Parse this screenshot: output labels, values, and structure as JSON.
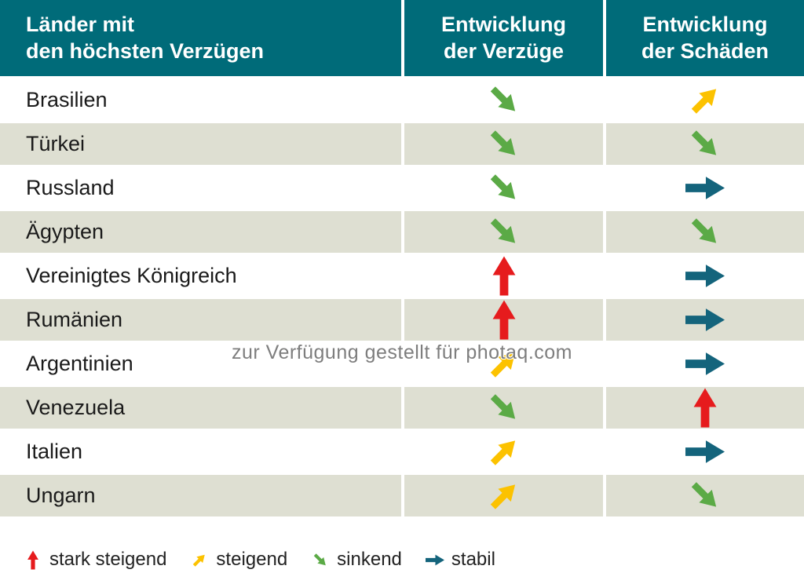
{
  "header": {
    "countries": "Länder mit\nden höchsten Verzügen",
    "verzuege": "Entwicklung\nder Verzüge",
    "schaeden": "Entwicklung\nder Schäden"
  },
  "watermark": "zur Verfügung gestellt für photaq.com",
  "legend": [
    {
      "label": "stark steigend",
      "trend": "stark steigend"
    },
    {
      "label": "steigend",
      "trend": "steigend"
    },
    {
      "label": "sinkend",
      "trend": "sinkend"
    },
    {
      "label": "stabil",
      "trend": "stabil"
    }
  ],
  "colors": {
    "header_bg": "#006b79",
    "row_alt_bg": "#dedfd2",
    "arrow_stark_steigend": "#e61b1d",
    "arrow_steigend": "#fcc200",
    "arrow_sinkend": "#5baa46",
    "arrow_stabil": "#14647c"
  },
  "chart_data": {
    "type": "table",
    "title": "Länder mit den höchsten Verzügen",
    "columns": [
      "Länder mit den höchsten Verzügen",
      "Entwicklung der Verzüge",
      "Entwicklung der Schäden"
    ],
    "rows": [
      {
        "country": "Brasilien",
        "entwicklung_der_verzuege": "sinkend",
        "entwicklung_der_schaeden": "steigend"
      },
      {
        "country": "Türkei",
        "entwicklung_der_verzuege": "sinkend",
        "entwicklung_der_schaeden": "sinkend"
      },
      {
        "country": "Russland",
        "entwicklung_der_verzuege": "sinkend",
        "entwicklung_der_schaeden": "stabil"
      },
      {
        "country": "Ägypten",
        "entwicklung_der_verzuege": "sinkend",
        "entwicklung_der_schaeden": "sinkend"
      },
      {
        "country": "Vereinigtes Königreich",
        "entwicklung_der_verzuege": "stark steigend",
        "entwicklung_der_schaeden": "stabil"
      },
      {
        "country": "Rumänien",
        "entwicklung_der_verzuege": "stark steigend",
        "entwicklung_der_schaeden": "stabil"
      },
      {
        "country": "Argentinien",
        "entwicklung_der_verzuege": "steigend",
        "entwicklung_der_schaeden": "stabil"
      },
      {
        "country": "Venezuela",
        "entwicklung_der_verzuege": "sinkend",
        "entwicklung_der_schaeden": "stark steigend"
      },
      {
        "country": "Italien",
        "entwicklung_der_verzuege": "steigend",
        "entwicklung_der_schaeden": "stabil"
      },
      {
        "country": "Ungarn",
        "entwicklung_der_verzuege": "steigend",
        "entwicklung_der_schaeden": "sinkend"
      }
    ],
    "legend_meaning": {
      "stark steigend": "red arrow pointing up",
      "steigend": "yellow arrow pointing up-right",
      "sinkend": "green arrow pointing down-right",
      "stabil": "teal arrow pointing right"
    }
  }
}
